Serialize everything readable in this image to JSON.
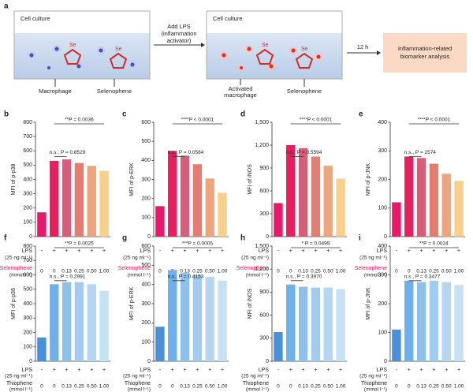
{
  "diagram": {
    "panel": "a",
    "box1_title": "Cell culture",
    "box2_title": "Cell culture",
    "step1": [
      "Add LPS",
      "(inflammation",
      "activator)"
    ],
    "step2": "12 h",
    "result": [
      "Inflammation-related",
      "biomarker analysis"
    ],
    "label_macrophage": "Macrophage",
    "label_selenophene1": "Selenophene",
    "label_activated": [
      "Activated",
      "macrophage"
    ],
    "label_selenophene2": "Selenophene",
    "se1": "Se",
    "se2": "Se"
  },
  "chart_data": [
    {
      "type": "bar",
      "panel": "b",
      "ylabel": "MFI of p-p38",
      "ylim": [
        0,
        800
      ],
      "yticks": [
        0,
        100,
        200,
        300,
        400,
        500,
        600,
        700,
        800
      ],
      "lps_label": "LPS",
      "lps_unit": "(25 ng ml⁻¹)",
      "lps": [
        "-",
        "+",
        "+",
        "+",
        "+",
        "+"
      ],
      "compound": "Selenophene",
      "compound_unit": "(mmol l⁻¹)",
      "categories": [
        "0",
        "0",
        "0.13",
        "0.25",
        "0.50",
        "1.00"
      ],
      "values": [
        170,
        530,
        540,
        515,
        495,
        460
      ],
      "colors": [
        "#e8196b",
        "#e81f5f",
        "#d95c78",
        "#e47c72",
        "#f0a47c",
        "#f8d08c"
      ],
      "compound_color": "#e8196b",
      "sig_top": "**P = 0.0036",
      "sig_ns": "n.s., P = 0.8529"
    },
    {
      "type": "bar",
      "panel": "c",
      "ylabel": "MFI of p-ERK",
      "ylim": [
        0,
        600
      ],
      "yticks": [
        0,
        100,
        200,
        300,
        400,
        500,
        600
      ],
      "lps_label": "LPS",
      "lps_unit": "(25 ng ml⁻¹)",
      "lps": [
        "-",
        "+",
        "+",
        "+",
        "+",
        "+"
      ],
      "compound": "Selenophene",
      "compound_unit": "(mmol l⁻¹)",
      "categories": [
        "0",
        "0",
        "0.13",
        "0.25",
        "0.50",
        "1.00"
      ],
      "values": [
        160,
        450,
        425,
        380,
        305,
        230
      ],
      "colors": [
        "#e8196b",
        "#e81f5f",
        "#d95c78",
        "#e47c72",
        "#f0a47c",
        "#f8d08c"
      ],
      "compound_color": "#e8196b",
      "sig_top": "****P < 0.0001",
      "sig_ns": "n.s., P = 0.0584"
    },
    {
      "type": "bar",
      "panel": "d",
      "ylabel": "MFI of iNOS",
      "ylim": [
        0,
        1500
      ],
      "yticks": [
        0,
        300,
        600,
        900,
        {
          "value": 1200,
          "label": "1,200"
        },
        {
          "value": 1500,
          "label": "1,500"
        }
      ],
      "lps_label": "LPS",
      "lps_unit": "(25 ng ml⁻¹)",
      "lps": [
        "-",
        "+",
        "+",
        "+",
        "+",
        "+"
      ],
      "compound": "Selenophene",
      "compound_unit": "(mmol l⁻¹)",
      "categories": [
        "0",
        "0",
        "0.13",
        "0.25",
        "0.50",
        "1.00"
      ],
      "values": [
        440,
        1200,
        1160,
        1050,
        930,
        760
      ],
      "colors": [
        "#e8196b",
        "#e81f5f",
        "#d95c78",
        "#e47c72",
        "#f0a47c",
        "#f8d08c"
      ],
      "compound_color": "#e8196b",
      "sig_top": "****P < 0.0001",
      "sig_ns": "n.s., P = 0.5594"
    },
    {
      "type": "bar",
      "panel": "e",
      "ylabel": "MFI of p-JNK",
      "ylim": [
        0,
        400
      ],
      "yticks": [
        0,
        100,
        200,
        300,
        400
      ],
      "lps_label": "LPS",
      "lps_unit": "(25 ng ml⁻¹)",
      "lps": [
        "-",
        "+",
        "+",
        "+",
        "+",
        "+"
      ],
      "compound": "Selenophene",
      "compound_unit": "(mmol l⁻¹)",
      "categories": [
        "0",
        "0",
        "0.13",
        "0.25",
        "0.50",
        "1.00"
      ],
      "values": [
        120,
        280,
        275,
        255,
        220,
        195
      ],
      "colors": [
        "#e8196b",
        "#e81f5f",
        "#d95c78",
        "#e47c72",
        "#f0a47c",
        "#f8d08c"
      ],
      "compound_color": "#e8196b",
      "sig_top": "****P < 0.0001",
      "sig_ns": "n.s., P = 2574"
    },
    {
      "type": "bar",
      "panel": "f",
      "ylabel": "MFI of p-p38",
      "ylim": [
        0,
        800
      ],
      "yticks": [
        0,
        100,
        200,
        300,
        400,
        500,
        600,
        700,
        800
      ],
      "lps_label": "LPS",
      "lps_unit": "(25 ng ml⁻¹)",
      "lps": [
        "-",
        "+",
        "+",
        "+",
        "+",
        "+"
      ],
      "compound": "Thiophene",
      "compound_unit": "(mmol l⁻¹)",
      "categories": [
        "0",
        "0",
        "0.13",
        "0.25",
        "0.50",
        "1.00"
      ],
      "values": [
        165,
        535,
        550,
        550,
        535,
        490
      ],
      "colors": [
        "#4a8fdc",
        "#6eb0ec",
        "#8cc1ee",
        "#a1ccf0",
        "#b4d6f2",
        "#c7e1f4"
      ],
      "compound_color": "#222222",
      "sig_top": "**P = 0.0025",
      "sig_ns": "n.s., P = 0.2991"
    },
    {
      "type": "bar",
      "panel": "g",
      "ylabel": "MFI of p-ERK",
      "ylim": [
        0,
        600
      ],
      "yticks": [
        0,
        100,
        200,
        300,
        400,
        500,
        600
      ],
      "lps_label": "LPS",
      "lps_unit": "(25 ng ml⁻¹)",
      "lps": [
        "-",
        "+",
        "+",
        "+",
        "+",
        "+"
      ],
      "compound": "Thiophene",
      "compound_unit": "(mmol l⁻¹)",
      "categories": [
        "0",
        "0",
        "0.13",
        "0.25",
        "0.50",
        "1.00"
      ],
      "values": [
        180,
        475,
        460,
        450,
        440,
        420
      ],
      "colors": [
        "#4a8fdc",
        "#6eb0ec",
        "#8cc1ee",
        "#a1ccf0",
        "#b4d6f2",
        "#c7e1f4"
      ],
      "compound_color": "#222222",
      "sig_top": "***P = 0.0005",
      "sig_ns": "n.s., P = 0.4153"
    },
    {
      "type": "bar",
      "panel": "h",
      "ylabel": "MFI of iNOS",
      "ylim": [
        0,
        1500
      ],
      "yticks": [
        0,
        300,
        600,
        900,
        {
          "value": 1200,
          "label": "1,200"
        },
        {
          "value": 1500,
          "label": "1,500"
        }
      ],
      "lps_label": "LPS",
      "lps_unit": "(25 ng ml⁻¹)",
      "lps": [
        "-",
        "+",
        "+",
        "+",
        "+",
        "+"
      ],
      "compound": "Thiophene",
      "compound_unit": "(mmol l⁻¹)",
      "categories": [
        "0",
        "0",
        "0.13",
        "0.25",
        "0.50",
        "1.00"
      ],
      "values": [
        380,
        1000,
        970,
        960,
        960,
        940
      ],
      "colors": [
        "#4a8fdc",
        "#6eb0ec",
        "#8cc1ee",
        "#a1ccf0",
        "#b4d6f2",
        "#c7e1f4"
      ],
      "compound_color": "#222222",
      "sig_top": "* P = 0.0499",
      "sig_ns": "n.s., P = 0.3970"
    },
    {
      "type": "bar",
      "panel": "i",
      "ylabel": "MFI of p-JNK",
      "ylim": [
        0,
        400
      ],
      "yticks": [
        0,
        100,
        200,
        300,
        400
      ],
      "lps_label": "LPS",
      "lps_unit": "(25 ng ml⁻¹)",
      "lps": [
        "-",
        "+",
        "+",
        "+",
        "+",
        "+"
      ],
      "compound": "Thiophene",
      "compound_unit": "(mmol l⁻¹)",
      "categories": [
        "0",
        "0",
        "0.13",
        "0.25",
        "0.50",
        "1.00"
      ],
      "values": [
        110,
        280,
        275,
        280,
        275,
        265
      ],
      "colors": [
        "#4a8fdc",
        "#6eb0ec",
        "#8cc1ee",
        "#a1ccf0",
        "#b4d6f2",
        "#c7e1f4"
      ],
      "compound_color": "#222222",
      "sig_top": "**P = 0.0024",
      "sig_ns": "n.s., P = 0.3477"
    }
  ]
}
